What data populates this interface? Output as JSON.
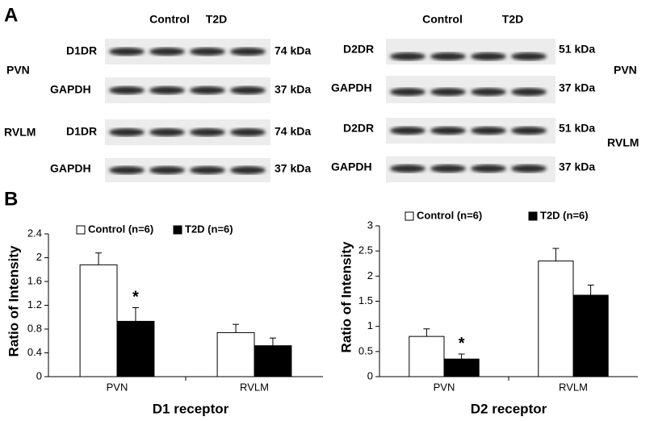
{
  "blots": {
    "label": "A",
    "left": {
      "headers": [
        "Control",
        "T2D"
      ],
      "labels": [
        {
          "text": "D1DR",
          "size": "74 kDa"
        },
        {
          "text": "GAPDH",
          "size": "37 kDa"
        },
        {
          "text": "D1DR",
          "size": "74 kDa"
        },
        {
          "text": "GAPDH",
          "size": "37 kDa"
        }
      ],
      "regions": [
        "PVN",
        "RVLM"
      ]
    },
    "right": {
      "headers": [
        "Control",
        "T2D"
      ],
      "labels": [
        {
          "text": "D2DR",
          "size": "51 kDa"
        },
        {
          "text": "GAPDH",
          "size": "37 kDa"
        },
        {
          "text": "D2DR",
          "size": "51 kDa"
        },
        {
          "text": "GAPDH",
          "size": "37 kDa"
        }
      ],
      "regions": [
        "PVN",
        "RVLM"
      ]
    }
  },
  "panel_b_label": "B",
  "chart_data": [
    {
      "type": "bar",
      "xlabel": "D1 receptor",
      "ylabel": "Ratio of Intensity",
      "categories": [
        "PVN",
        "RVLM"
      ],
      "series": [
        {
          "name": "Control (n=6)",
          "color": "#ffffff",
          "values": [
            1.88,
            0.74
          ],
          "errors": [
            0.2,
            0.14
          ]
        },
        {
          "name": "T2D (n=6)",
          "color": "#000000",
          "values": [
            0.93,
            0.52
          ],
          "errors": [
            0.23,
            0.13
          ]
        }
      ],
      "ylim": [
        0,
        2.4
      ],
      "yticks": [
        0,
        0.4,
        0.8,
        1.2,
        1.6,
        2,
        2.4
      ],
      "legend": "top",
      "annotations": [
        {
          "text": "*",
          "category": "PVN",
          "series": "T2D (n=6)"
        }
      ]
    },
    {
      "type": "bar",
      "xlabel": "D2 receptor",
      "ylabel": "Ratio of Intensity",
      "categories": [
        "PVN",
        "RVLM"
      ],
      "series": [
        {
          "name": "Control (n=6)",
          "color": "#ffffff",
          "values": [
            0.8,
            2.3
          ],
          "errors": [
            0.15,
            0.25
          ]
        },
        {
          "name": "T2D (n=6)",
          "color": "#000000",
          "values": [
            0.35,
            1.62
          ],
          "errors": [
            0.1,
            0.2
          ]
        }
      ],
      "ylim": [
        0,
        3
      ],
      "yticks": [
        0,
        0.5,
        1,
        1.5,
        2,
        2.5,
        3
      ],
      "legend": "top",
      "annotations": [
        {
          "text": "*",
          "category": "PVN",
          "series": "T2D (n=6)"
        }
      ]
    }
  ]
}
